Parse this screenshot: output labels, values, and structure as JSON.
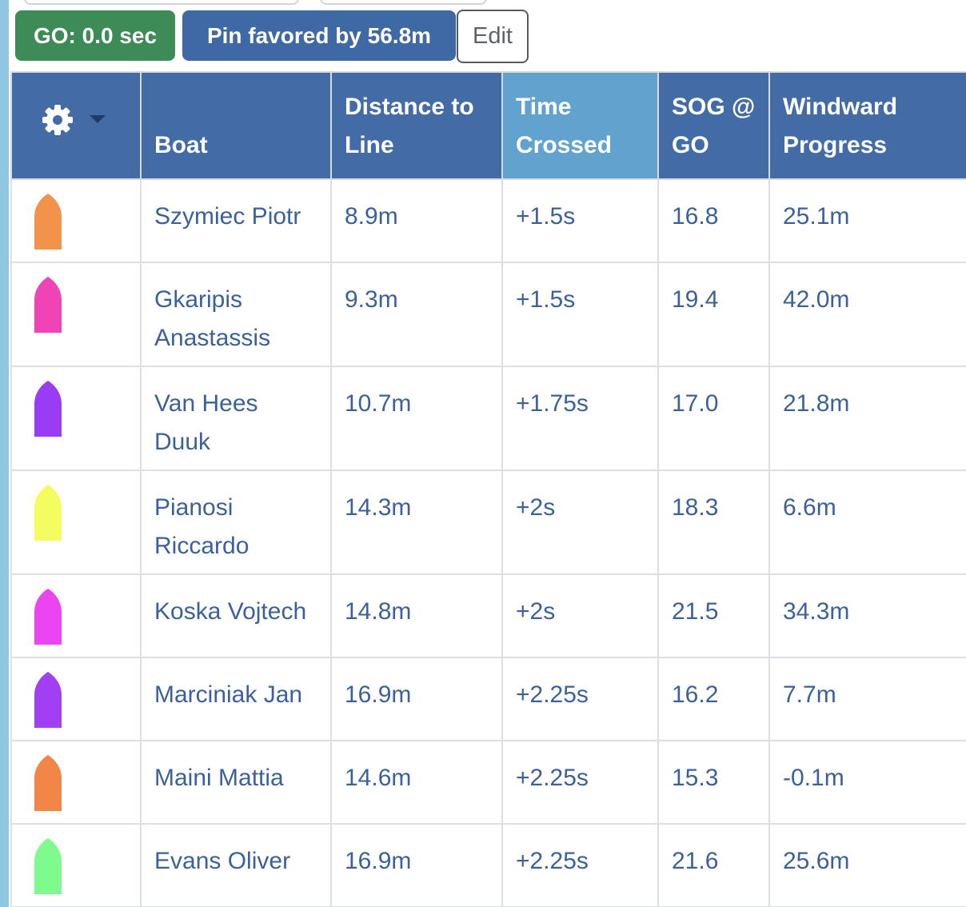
{
  "status": {
    "go_label": "GO: 0.0 sec",
    "pin_label": "Pin favored by 56.8m",
    "edit_label": "Edit"
  },
  "table": {
    "settings_icon": "gear-icon",
    "dropdown_icon": "caret-down-icon",
    "columns": {
      "boat": "Boat",
      "distance": "Distance to Line",
      "time": "Time Crossed",
      "sog": "SOG @ GO",
      "windward": "Windward Progress"
    },
    "sorted_column": "time",
    "rows": [
      {
        "color": "#f2924b",
        "boat": "Szymiec Piotr",
        "distance": "8.9m",
        "time": "+1.5s",
        "sog": "16.8",
        "windward": "25.1m"
      },
      {
        "color": "#ee44b5",
        "boat": "Gkaripis Anastassis",
        "distance": "9.3m",
        "time": "+1.5s",
        "sog": "19.4",
        "windward": "42.0m"
      },
      {
        "color": "#9b3cf5",
        "boat": "Van Hees Duuk",
        "distance": "10.7m",
        "time": "+1.75s",
        "sog": "17.0",
        "windward": "21.8m"
      },
      {
        "color": "#f4fc60",
        "boat": "Pianosi Riccardo",
        "distance": "14.3m",
        "time": "+2s",
        "sog": "18.3",
        "windward": "6.6m"
      },
      {
        "color": "#ea44f3",
        "boat": "Koska Vojtech",
        "distance": "14.8m",
        "time": "+2s",
        "sog": "21.5",
        "windward": "34.3m"
      },
      {
        "color": "#a33ff2",
        "boat": "Marciniak Jan",
        "distance": "16.9m",
        "time": "+2.25s",
        "sog": "16.2",
        "windward": "7.7m"
      },
      {
        "color": "#f08748",
        "boat": "Maini Mattia",
        "distance": "14.6m",
        "time": "+2.25s",
        "sog": "15.3",
        "windward": "-0.1m"
      },
      {
        "color": "#7efb8c",
        "boat": "Evans Oliver",
        "distance": "16.9m",
        "time": "+2.25s",
        "sog": "21.6",
        "windward": "25.6m"
      }
    ]
  }
}
